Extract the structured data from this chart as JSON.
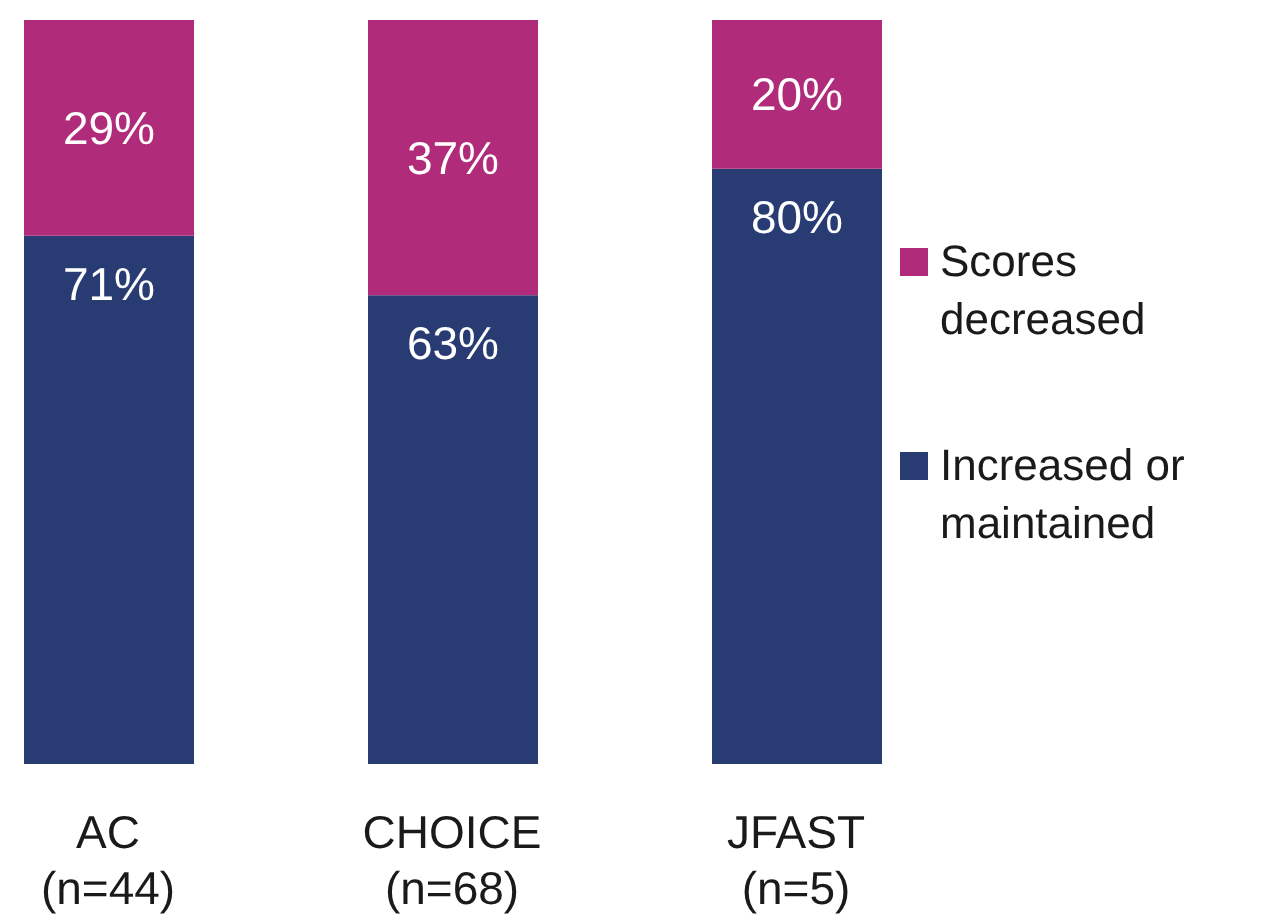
{
  "chart_data": {
    "type": "bar",
    "stacked": true,
    "categories": [
      "AC\n(n=44)",
      "CHOICE\n(n=68)",
      "JFAST\n(n=5)"
    ],
    "series": [
      {
        "name": "Increased or maintained",
        "color": "#283b73",
        "values": [
          71,
          63,
          80
        ],
        "value_labels": [
          "71%",
          "63%",
          "80%"
        ]
      },
      {
        "name": "Scores decreased",
        "color": "#b02b79",
        "values": [
          29,
          37,
          20
        ],
        "value_labels": [
          "29%",
          "37%",
          "20%"
        ]
      }
    ],
    "ylim": [
      0,
      100
    ],
    "legend": "right",
    "tick_labels": "x"
  }
}
